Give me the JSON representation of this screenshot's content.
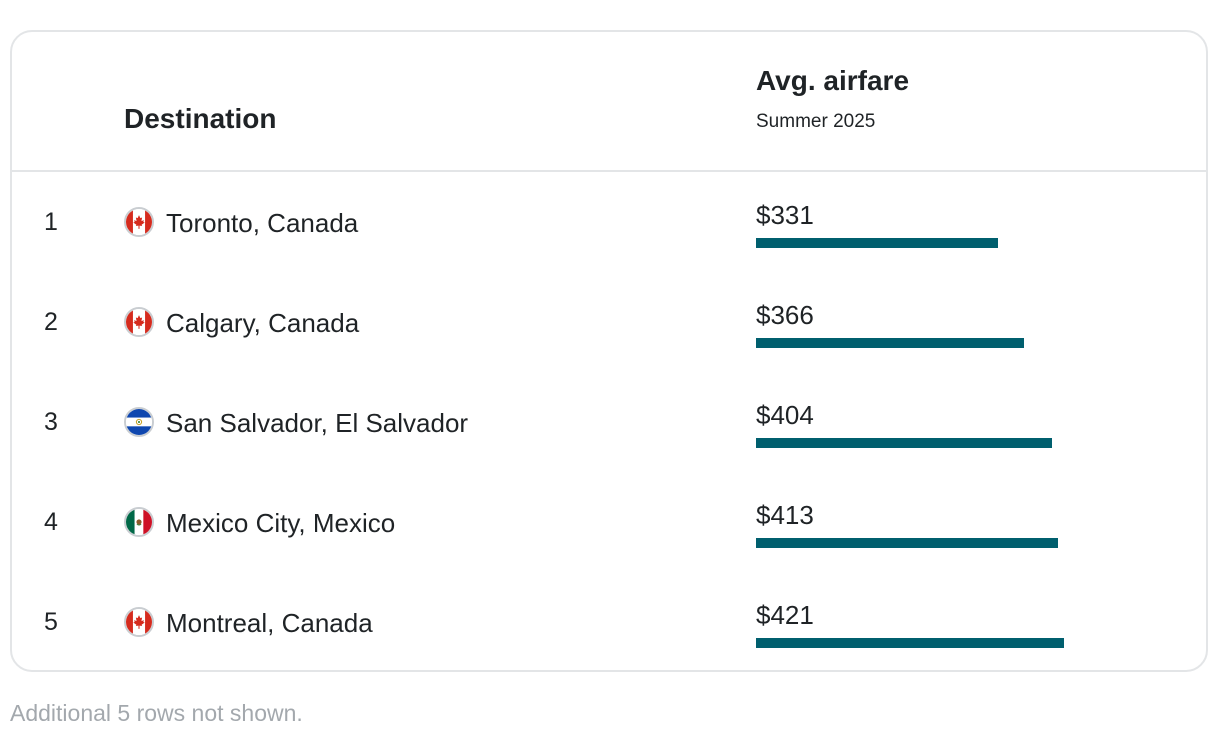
{
  "table": {
    "dest_header": "Destination",
    "fare_header": "Avg. airfare",
    "fare_subheader": "Summer 2025"
  },
  "chart_data": {
    "type": "bar",
    "title": "",
    "categories": [
      "Toronto, Canada",
      "Calgary, Canada",
      "San Salvador, El Salvador",
      "Mexico City, Mexico",
      "Montreal, Canada"
    ],
    "ranks": [
      "1",
      "2",
      "3",
      "4",
      "5"
    ],
    "labels": [
      "$331",
      "$366",
      "$404",
      "$413",
      "$421"
    ],
    "values": [
      331,
      366,
      404,
      413,
      421
    ],
    "flags": [
      "canada-flag-icon",
      "canada-flag-icon",
      "el-salvador-flag-icon",
      "mexico-flag-icon",
      "canada-flag-icon"
    ],
    "series": [
      {
        "values": [
          331,
          366,
          404,
          413,
          421
        ]
      }
    ],
    "bar_color": "#005f6e",
    "xlabel": "",
    "ylabel": ""
  },
  "footnote": "Additional 5 rows not shown."
}
